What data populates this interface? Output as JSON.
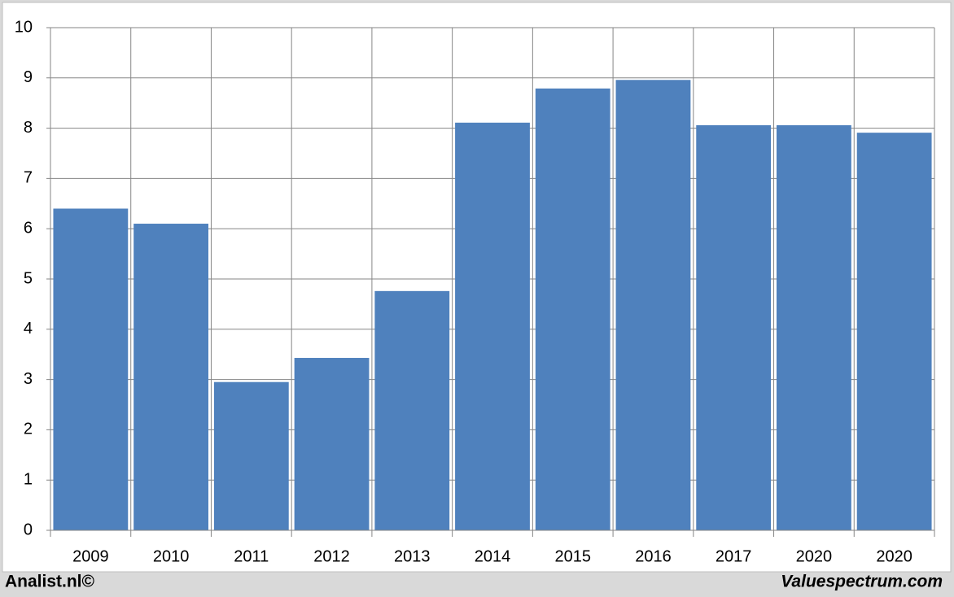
{
  "chart_data": {
    "type": "bar",
    "categories": [
      "2009",
      "2010",
      "2011",
      "2012",
      "2013",
      "2014",
      "2015",
      "2016",
      "2017",
      "2020",
      "2020"
    ],
    "values": [
      6.4,
      6.1,
      2.95,
      3.43,
      4.76,
      8.11,
      8.79,
      8.96,
      8.06,
      8.06,
      7.91
    ],
    "color": "#4f81bd",
    "ylim": [
      0,
      10
    ],
    "yticks": [
      0,
      1,
      2,
      3,
      4,
      5,
      6,
      7,
      8,
      9,
      10
    ],
    "grid": true
  },
  "footer": {
    "left": "Analist.nl©",
    "right": "Valuespectrum.com"
  }
}
